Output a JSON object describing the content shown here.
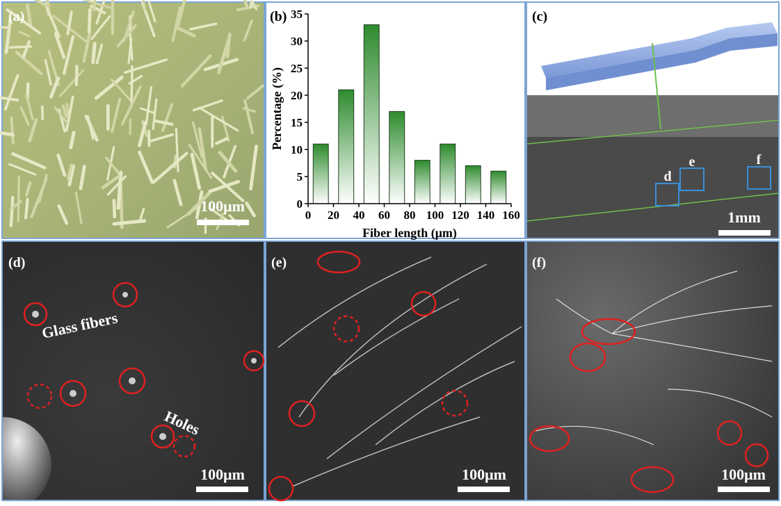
{
  "panels": [
    {
      "label": "(a)",
      "scale_bar": "100μm"
    },
    {
      "label": "(b)"
    },
    {
      "label": "(c)",
      "scale_bar": "1mm",
      "regions": [
        "d",
        "e",
        "f"
      ]
    },
    {
      "label": "(d)",
      "scale_bar": "100μm",
      "annotations": [
        "Glass fibers",
        "Holes"
      ]
    },
    {
      "label": "(e)",
      "scale_bar": "100μm"
    },
    {
      "label": "(f)",
      "scale_bar": "100μm"
    }
  ],
  "chart_data": {
    "type": "bar",
    "x_label": "Fiber length (μm)",
    "y_label": "Percentage (%)",
    "x": [
      10,
      30,
      50,
      70,
      90,
      110,
      130,
      150
    ],
    "values": [
      11,
      21,
      33,
      17,
      8,
      11,
      7,
      6
    ],
    "color": "#2e8b2e",
    "xlim": [
      0,
      160
    ],
    "xticks": [
      0,
      20,
      40,
      60,
      80,
      100,
      120,
      140,
      160
    ],
    "ylim": [
      0,
      35
    ],
    "yticks": [
      0,
      5,
      10,
      15,
      20,
      25,
      30,
      35
    ]
  }
}
